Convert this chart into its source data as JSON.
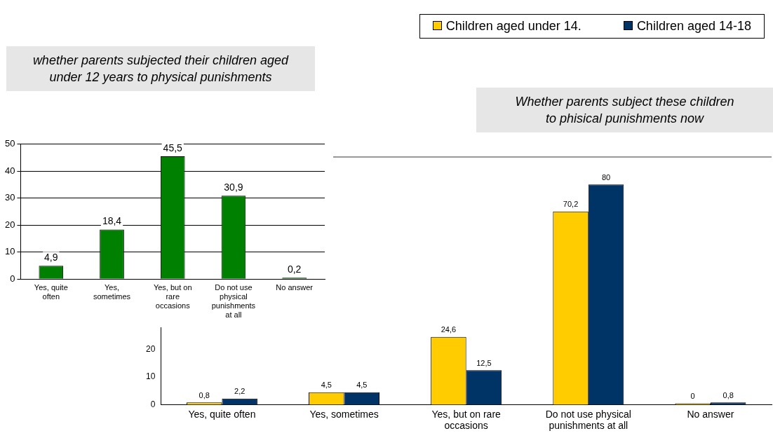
{
  "chart_data": [
    {
      "type": "bar",
      "title": "whether parents subjected their children aged under 12 years to physical punishments",
      "categories": [
        "Yes, quite often",
        "Yes, sometimes",
        "Yes, but on rare occasions",
        "Do not use physical punishments at all",
        "No answer"
      ],
      "values": [
        4.9,
        18.4,
        45.5,
        30.9,
        0.2
      ],
      "value_labels": [
        "4,9",
        "18,4",
        "45,5",
        "30,9",
        "0,2"
      ],
      "color": "#008000",
      "ylim": [
        0,
        50
      ],
      "yticks": [
        0,
        10,
        20,
        30,
        40,
        50
      ],
      "grid": "y"
    },
    {
      "type": "bar",
      "title": "Whether parents subject these children to phisical punishments now",
      "categories": [
        "Yes, quite often",
        "Yes, sometimes",
        "Yes, but on rare occasions",
        "Do not use physical punishments at all",
        "No answer"
      ],
      "series": [
        {
          "name": "Children aged under 14.",
          "color": "#ffcc00",
          "values": [
            0.8,
            4.5,
            24.6,
            70.2,
            0
          ],
          "value_labels": [
            "0,8",
            "4,5",
            "24,6",
            "70,2",
            "0"
          ]
        },
        {
          "name": "Children aged 14-18",
          "color": "#003366",
          "values": [
            2.2,
            4.5,
            12.5,
            80,
            0.8
          ],
          "value_labels": [
            "2,2",
            "4,5",
            "12,5",
            "80",
            "0,8"
          ]
        }
      ],
      "ylim": [
        0,
        90
      ],
      "yticks": [
        0,
        10,
        20
      ],
      "legend": "top right"
    }
  ]
}
